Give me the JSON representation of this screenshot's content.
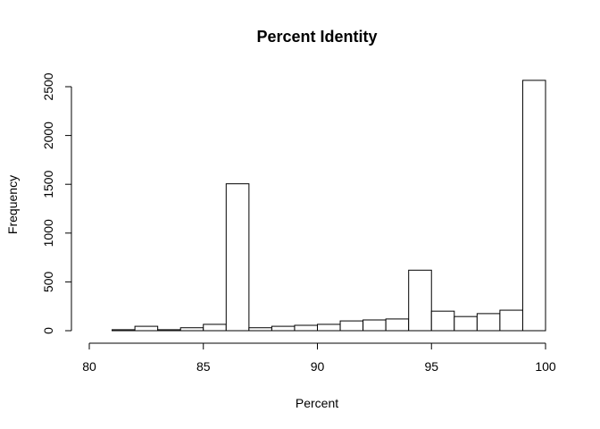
{
  "chart_data": {
    "type": "bar",
    "title": "Percent Identity",
    "xlabel": "Percent",
    "ylabel": "Frequency",
    "bin_edges": [
      80,
      81,
      82,
      83,
      84,
      85,
      86,
      87,
      88,
      89,
      90,
      91,
      92,
      93,
      94,
      95,
      96,
      97,
      98,
      99,
      100
    ],
    "values": [
      0,
      10,
      45,
      10,
      30,
      65,
      1505,
      30,
      45,
      55,
      65,
      100,
      110,
      120,
      620,
      200,
      145,
      175,
      210,
      2565
    ],
    "xlim": [
      80,
      100
    ],
    "ylim": [
      0,
      2500
    ],
    "x_ticks": [
      80,
      85,
      90,
      95,
      100
    ],
    "y_ticks": [
      0,
      500,
      1000,
      1500,
      2000,
      2500
    ],
    "grid": false,
    "legend": "none"
  }
}
